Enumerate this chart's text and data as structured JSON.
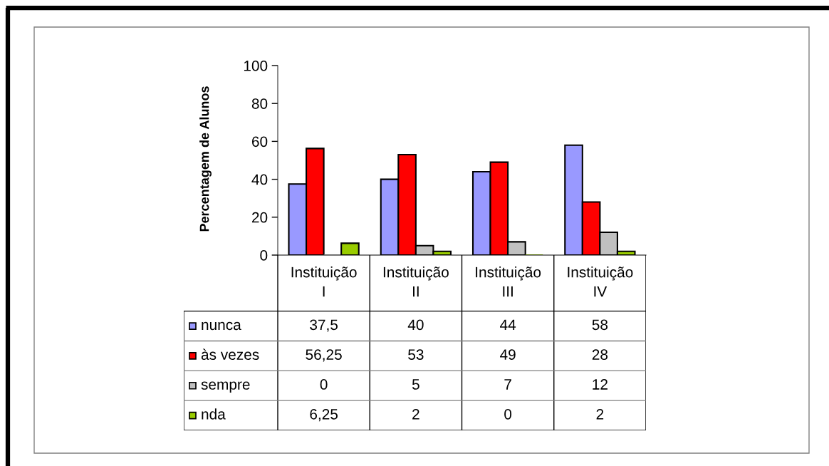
{
  "chart_data": {
    "type": "bar",
    "ylabel": "Percentagem de Alunos",
    "categories": [
      "Instituição I",
      "Instituição II",
      "Instituição III",
      "Instituição IV"
    ],
    "series": [
      {
        "name": "nunca",
        "color": "#9999ff",
        "values": [
          37.5,
          40,
          44,
          58
        ],
        "value_labels": [
          "37,5",
          "40",
          "44",
          "58"
        ]
      },
      {
        "name": "às vezes",
        "color": "#ff0000",
        "values": [
          56.25,
          53,
          49,
          28
        ],
        "value_labels": [
          "56,25",
          "53",
          "49",
          "28"
        ]
      },
      {
        "name": "sempre",
        "color": "#c0c0c0",
        "values": [
          0,
          5,
          7,
          12
        ],
        "value_labels": [
          "0",
          "5",
          "7",
          "12"
        ]
      },
      {
        "name": "nda",
        "color": "#99cc00",
        "values": [
          6.25,
          2,
          0,
          2
        ],
        "value_labels": [
          "6,25",
          "2",
          "0",
          "2"
        ]
      }
    ],
    "ylim": [
      0,
      100
    ],
    "yticks": [
      0,
      20,
      40,
      60,
      80,
      100
    ],
    "legend": "bottom left"
  }
}
